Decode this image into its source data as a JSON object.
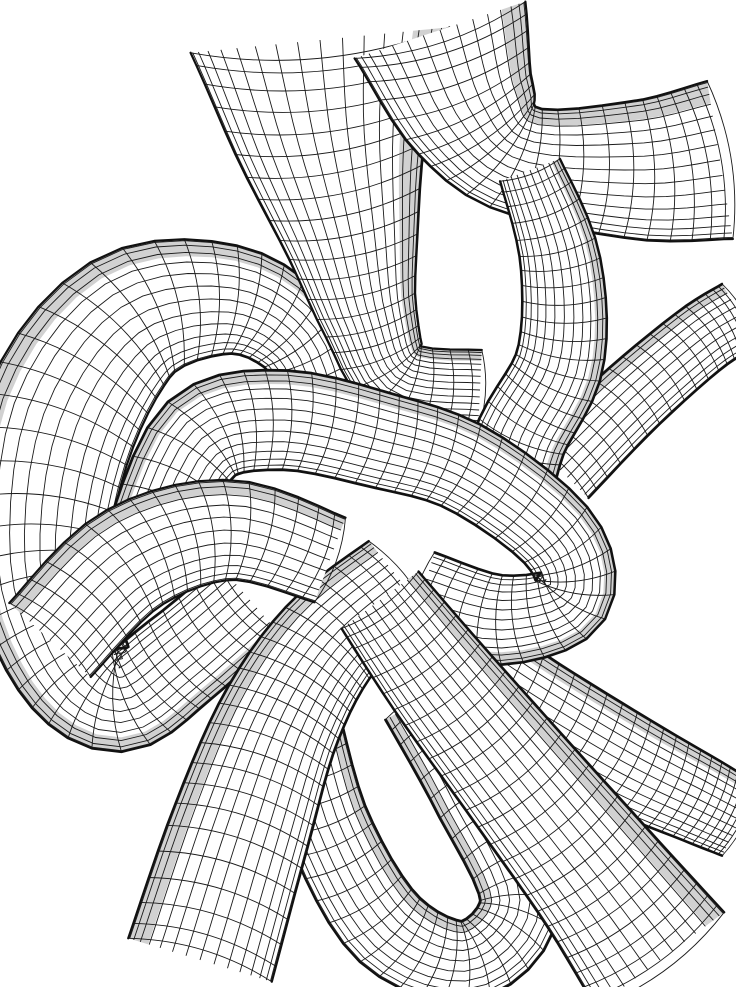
{
  "artwork": {
    "subject": "wireframe-knotted-tubes",
    "background_color": "#ffffff",
    "line_color": "#111111"
  }
}
